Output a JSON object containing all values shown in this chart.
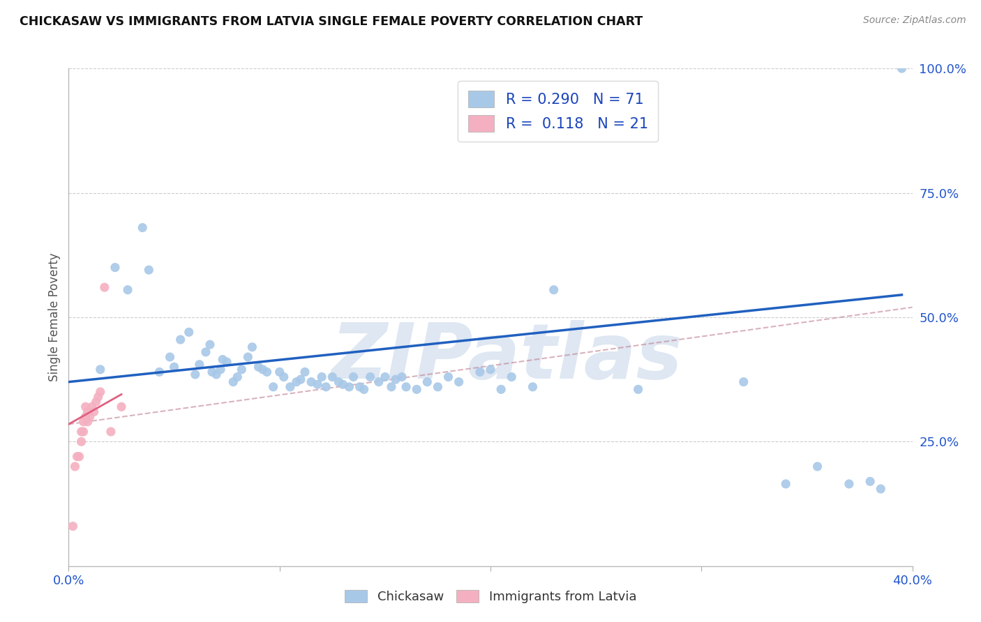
{
  "title": "CHICKASAW VS IMMIGRANTS FROM LATVIA SINGLE FEMALE POVERTY CORRELATION CHART",
  "source_text": "Source: ZipAtlas.com",
  "ylabel": "Single Female Poverty",
  "xlim": [
    0.0,
    0.4
  ],
  "ylim": [
    0.0,
    1.0
  ],
  "xticks": [
    0.0,
    0.1,
    0.2,
    0.3,
    0.4
  ],
  "xticklabels": [
    "0.0%",
    "",
    "",
    "",
    "40.0%"
  ],
  "ytick_positions": [
    0.0,
    0.25,
    0.5,
    0.75,
    1.0
  ],
  "yticklabels_right": [
    "",
    "25.0%",
    "50.0%",
    "75.0%",
    "100.0%"
  ],
  "blue_R": 0.29,
  "blue_N": 71,
  "pink_R": 0.118,
  "pink_N": 21,
  "blue_color": "#a8c8e8",
  "pink_color": "#f4b0c0",
  "blue_line_color": "#2060c0",
  "pink_line_color": "#e06080",
  "pink_line_dashed_color": "#c08090",
  "grid_color": "#cccccc",
  "background_color": "#ffffff",
  "watermark": "ZIPatlas",
  "watermark_color": "#c8d8ea",
  "legend_R_color": "#1a44bb",
  "blue_scatter_x": [
    0.015,
    0.022,
    0.028,
    0.035,
    0.038,
    0.043,
    0.048,
    0.05,
    0.053,
    0.057,
    0.06,
    0.062,
    0.065,
    0.067,
    0.068,
    0.07,
    0.072,
    0.073,
    0.075,
    0.078,
    0.08,
    0.082,
    0.085,
    0.087,
    0.09,
    0.092,
    0.094,
    0.097,
    0.1,
    0.102,
    0.105,
    0.108,
    0.11,
    0.112,
    0.115,
    0.118,
    0.12,
    0.122,
    0.125,
    0.128,
    0.13,
    0.133,
    0.135,
    0.138,
    0.14,
    0.143,
    0.147,
    0.15,
    0.153,
    0.155,
    0.158,
    0.16,
    0.165,
    0.17,
    0.175,
    0.18,
    0.185,
    0.195,
    0.2,
    0.205,
    0.21,
    0.22,
    0.23,
    0.27,
    0.32,
    0.34,
    0.355,
    0.37,
    0.38,
    0.385,
    0.395
  ],
  "blue_scatter_y": [
    0.395,
    0.6,
    0.555,
    0.68,
    0.595,
    0.39,
    0.42,
    0.4,
    0.455,
    0.47,
    0.385,
    0.405,
    0.43,
    0.445,
    0.39,
    0.385,
    0.395,
    0.415,
    0.41,
    0.37,
    0.38,
    0.395,
    0.42,
    0.44,
    0.4,
    0.395,
    0.39,
    0.36,
    0.39,
    0.38,
    0.36,
    0.37,
    0.375,
    0.39,
    0.37,
    0.365,
    0.38,
    0.36,
    0.38,
    0.37,
    0.365,
    0.36,
    0.38,
    0.36,
    0.355,
    0.38,
    0.37,
    0.38,
    0.36,
    0.375,
    0.38,
    0.36,
    0.355,
    0.37,
    0.36,
    0.38,
    0.37,
    0.39,
    0.395,
    0.355,
    0.38,
    0.36,
    0.555,
    0.355,
    0.37,
    0.165,
    0.2,
    0.165,
    0.17,
    0.155,
    1.0
  ],
  "pink_scatter_x": [
    0.002,
    0.003,
    0.004,
    0.005,
    0.006,
    0.006,
    0.007,
    0.007,
    0.008,
    0.008,
    0.009,
    0.009,
    0.01,
    0.011,
    0.012,
    0.013,
    0.014,
    0.015,
    0.017,
    0.02,
    0.025
  ],
  "pink_scatter_y": [
    0.08,
    0.2,
    0.22,
    0.22,
    0.25,
    0.27,
    0.27,
    0.29,
    0.3,
    0.32,
    0.29,
    0.31,
    0.3,
    0.32,
    0.31,
    0.33,
    0.34,
    0.35,
    0.56,
    0.27,
    0.32
  ],
  "blue_line_x": [
    0.0,
    0.395
  ],
  "blue_line_y": [
    0.37,
    0.545
  ],
  "pink_line_x": [
    0.0,
    0.025
  ],
  "pink_line_y": [
    0.285,
    0.345
  ],
  "pink_dashed_line_x": [
    0.0,
    0.4
  ],
  "pink_dashed_line_y": [
    0.285,
    0.52
  ]
}
